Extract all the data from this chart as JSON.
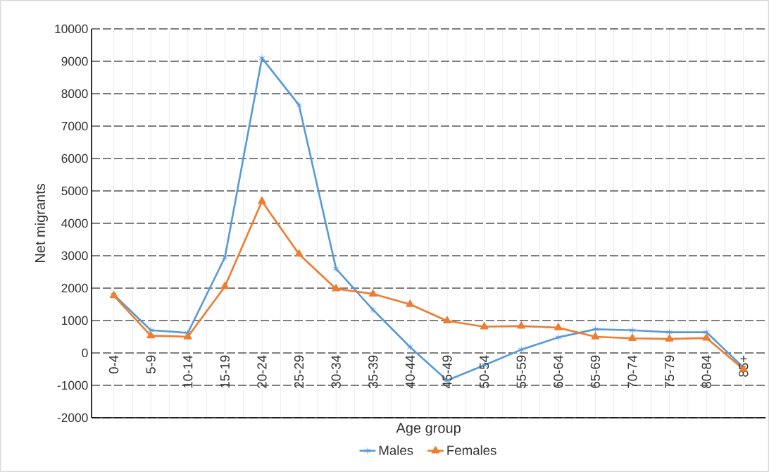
{
  "chart_data": {
    "type": "line",
    "xlabel": "Age group",
    "ylabel": "Net migrants",
    "categories": [
      "0-4",
      "5-9",
      "10-14",
      "15-19",
      "20-24",
      "25-29",
      "30-34",
      "35-39",
      "40-44",
      "45-49",
      "50-54",
      "55-59",
      "60-64",
      "65-69",
      "70-74",
      "75-79",
      "80-84",
      "85+"
    ],
    "series": [
      {
        "name": "Males",
        "color": "#5b9bd5",
        "marker": "cross",
        "values": [
          1800,
          700,
          620,
          2950,
          9100,
          7650,
          2600,
          1330,
          180,
          -850,
          -380,
          100,
          480,
          730,
          700,
          640,
          640,
          -450
        ]
      },
      {
        "name": "Females",
        "color": "#ed7d31",
        "marker": "triangle",
        "values": [
          1770,
          530,
          500,
          2050,
          4680,
          3050,
          1980,
          1820,
          1500,
          990,
          810,
          830,
          780,
          500,
          450,
          430,
          460,
          -500
        ]
      }
    ],
    "ylim": [
      -2000,
      10000
    ],
    "yticks": [
      -2000,
      -1000,
      0,
      1000,
      2000,
      3000,
      4000,
      5000,
      6000,
      7000,
      8000,
      9000,
      10000
    ],
    "grid": true,
    "legend": "bottom",
    "line_style": "solid"
  }
}
